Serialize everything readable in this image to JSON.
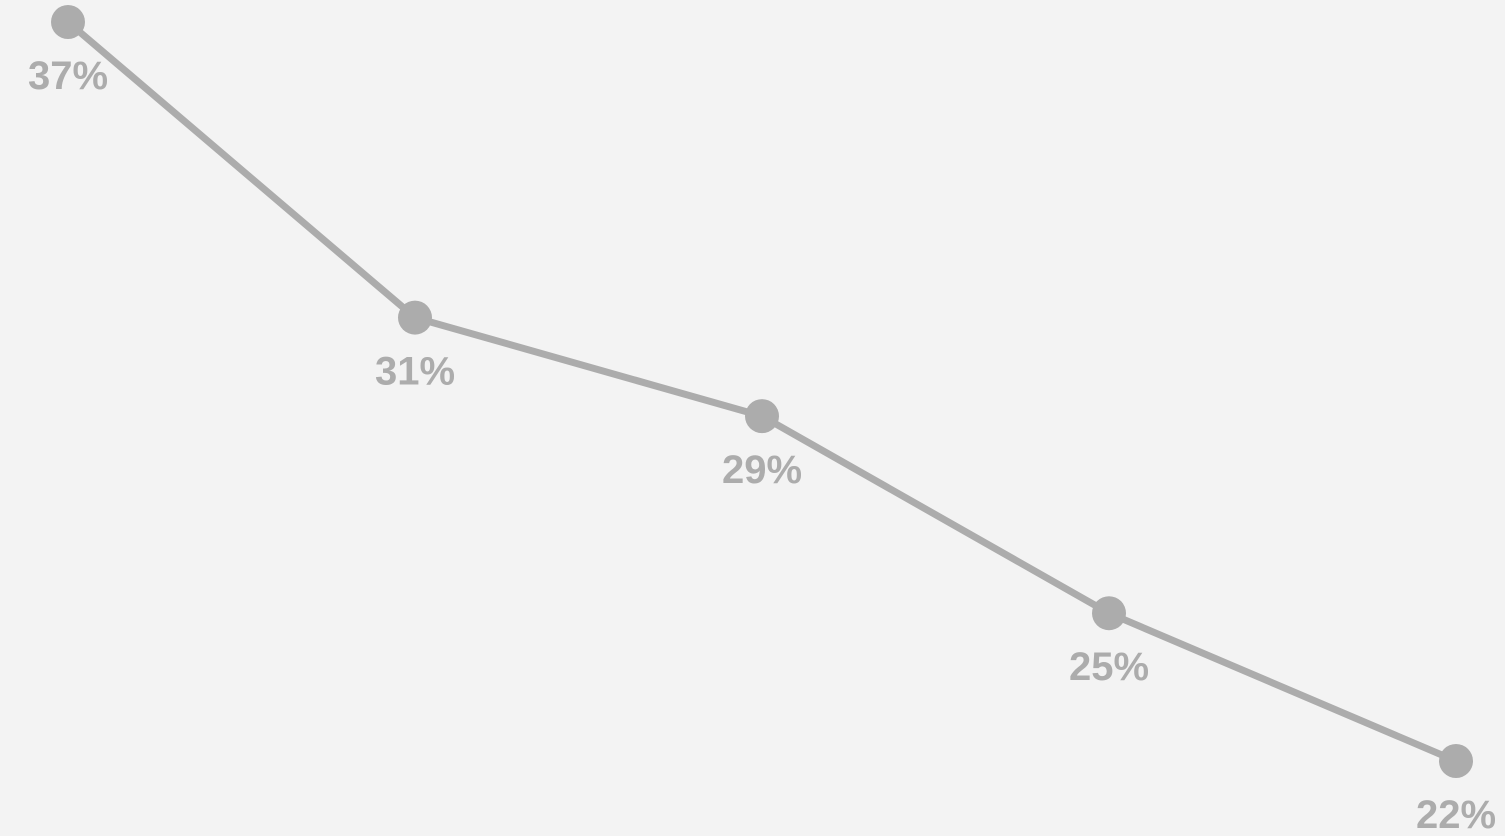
{
  "chart_data": {
    "type": "line",
    "title": "",
    "xlabel": "",
    "ylabel": "",
    "grid": false,
    "legend": "none",
    "color": "#acacac",
    "background": "#f3f3f3",
    "categories": [
      "",
      "",
      "",
      "",
      ""
    ],
    "series": [
      {
        "values": [
          37,
          31,
          29,
          25,
          22
        ],
        "labels": [
          "37%",
          "31%",
          "29%",
          "25%",
          "22%"
        ]
      }
    ],
    "ylim": [
      22,
      37
    ]
  }
}
